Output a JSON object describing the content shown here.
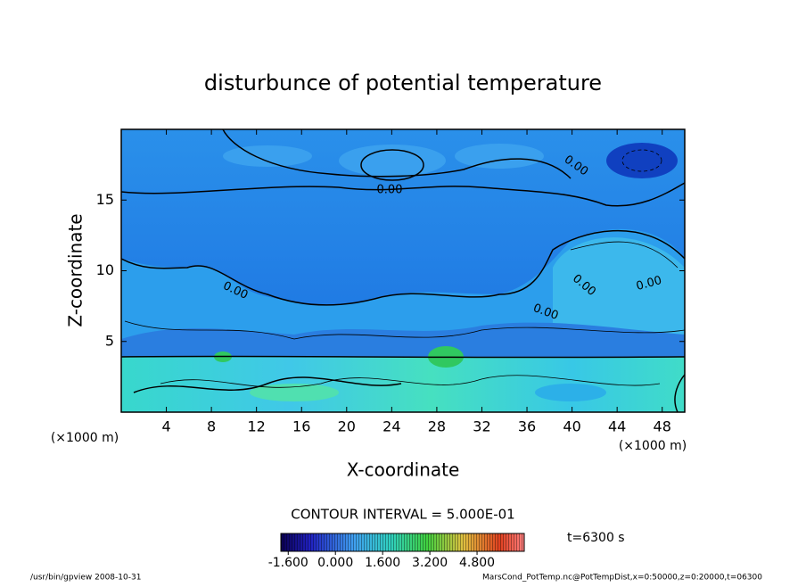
{
  "chart_data": {
    "type": "contour",
    "title": "disturbunce of potential temperature",
    "x_label": "X-coordinate",
    "y_label": "Z-coordinate",
    "x_unit": "(×1000 m)",
    "y_unit": "(×1000 m)",
    "xlim": [
      0,
      50
    ],
    "xticks": [
      4,
      8,
      12,
      16,
      20,
      24,
      28,
      32,
      36,
      40,
      44,
      48
    ],
    "ylim": [
      0,
      20
    ],
    "yticks": [
      5,
      10,
      15
    ],
    "contour_interval": "CONTOUR INTERVAL = 5.000E-01",
    "contour_labels": [
      "0.00",
      "0.00",
      "0.00",
      "0.00",
      "0.00",
      "0.00"
    ],
    "time": "t=6300 s",
    "colorbar": {
      "lim": [
        -1.85,
        6.4
      ],
      "ticks": [
        {
          "value": -1.6,
          "label": "-1.600"
        },
        {
          "value": 0,
          "label": "0.000"
        },
        {
          "value": 1.6,
          "label": "1.600"
        },
        {
          "value": 3.2,
          "label": "3.200"
        },
        {
          "value": 4.8,
          "label": "4.800"
        }
      ]
    },
    "footer_left": "/usr/bin/gpview   2008-10-31",
    "footer_right": "MarsCond_PotTemp.nc@PotTempDist,x=0:50000,z=0:20000,t=06300"
  }
}
